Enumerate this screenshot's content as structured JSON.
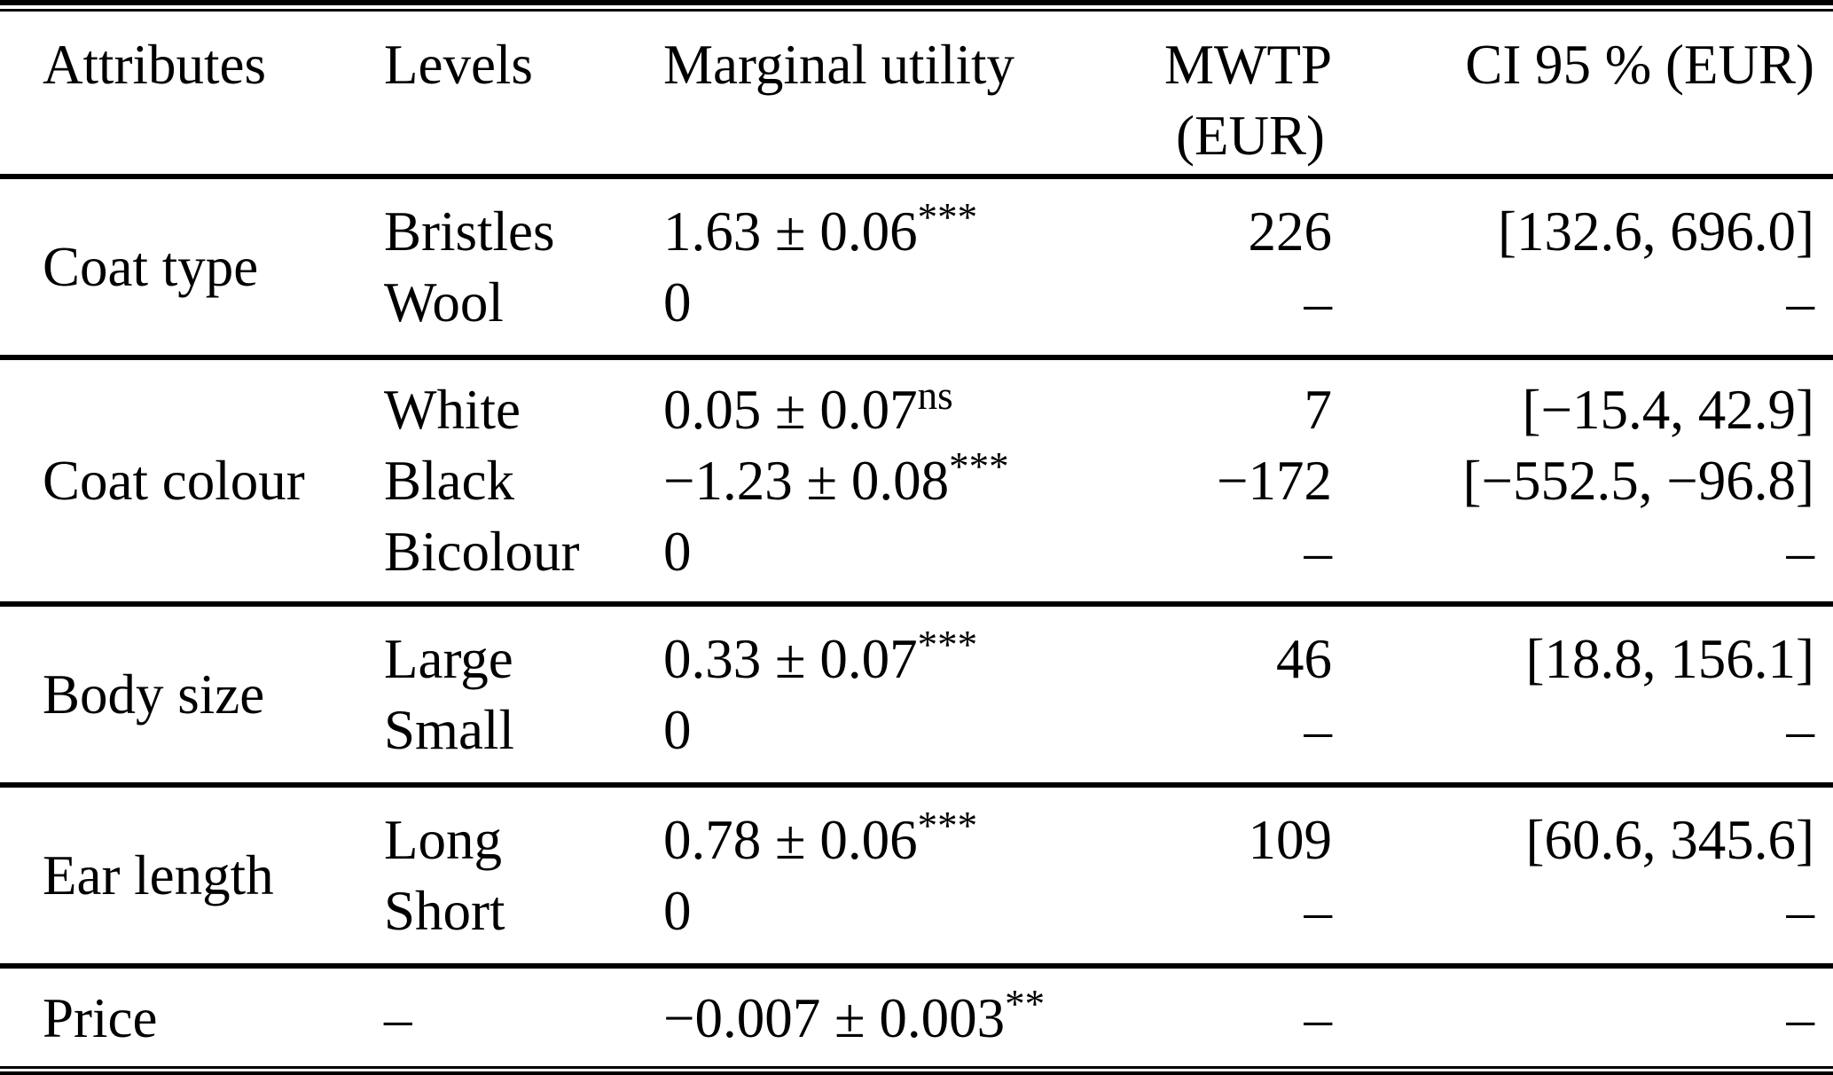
{
  "table": {
    "header": {
      "attributes": "Attributes",
      "levels": "Levels",
      "marginal_utility": "Marginal utility",
      "mwtp_line1": "MWTP",
      "mwtp_line2": "(EUR)",
      "ci": "CI 95 % (EUR)"
    },
    "groups": [
      {
        "attribute": "Coat type",
        "rows": [
          {
            "level": "Bristles",
            "utility": "1.63 ± 0.06",
            "sig": "***",
            "mwtp": "226",
            "ci": "[132.6, 696.0]"
          },
          {
            "level": "Wool",
            "utility": "0",
            "sig": "",
            "mwtp": "–",
            "ci": "–"
          }
        ]
      },
      {
        "attribute": "Coat colour",
        "rows": [
          {
            "level": "White",
            "utility": "0.05 ± 0.07",
            "sig": "ns",
            "mwtp": "7",
            "ci": "[−15.4, 42.9]"
          },
          {
            "level": "Black",
            "utility": "−1.23 ± 0.08",
            "sig": "***",
            "mwtp": "−172",
            "ci": "[−552.5, −96.8]"
          },
          {
            "level": "Bicolour",
            "utility": "0",
            "sig": "",
            "mwtp": "–",
            "ci": "–"
          }
        ]
      },
      {
        "attribute": "Body size",
        "rows": [
          {
            "level": "Large",
            "utility": "0.33 ± 0.07",
            "sig": "***",
            "mwtp": "46",
            "ci": "[18.8, 156.1]"
          },
          {
            "level": "Small",
            "utility": "0",
            "sig": "",
            "mwtp": "–",
            "ci": "–"
          }
        ]
      },
      {
        "attribute": "Ear length",
        "rows": [
          {
            "level": "Long",
            "utility": "0.78 ± 0.06",
            "sig": "***",
            "mwtp": "109",
            "ci": "[60.6, 345.6]"
          },
          {
            "level": "Short",
            "utility": "0",
            "sig": "",
            "mwtp": "–",
            "ci": "–"
          }
        ]
      },
      {
        "attribute": "Price",
        "rows": [
          {
            "level": "–",
            "utility": "−0.007 ± 0.003",
            "sig": "**",
            "mwtp": "–",
            "ci": "–"
          }
        ]
      }
    ]
  }
}
